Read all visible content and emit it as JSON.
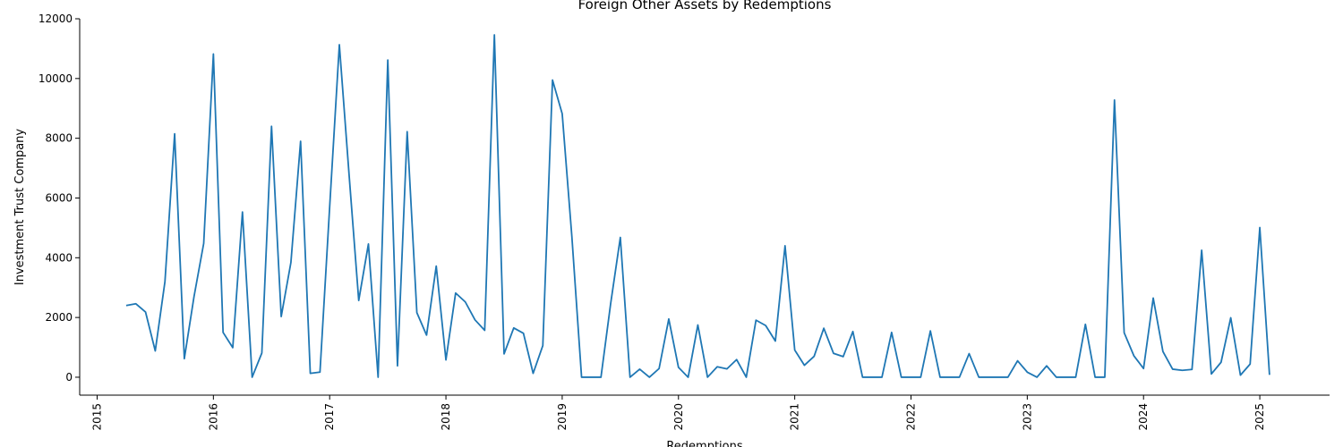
{
  "chart_data": {
    "type": "line",
    "title": "Foreign Other Assets by Redemptions",
    "xlabel": "Redemptions",
    "ylabel": "Investment Trust Company",
    "xlim": [
      2014.85,
      2025.6
    ],
    "ylim": [
      -600,
      12000
    ],
    "x_ticks": [
      2015,
      2016,
      2017,
      2018,
      2019,
      2020,
      2021,
      2022,
      2023,
      2024,
      2025
    ],
    "x_tick_labels": [
      "2015",
      "2016",
      "2017",
      "2018",
      "2019",
      "2020",
      "2021",
      "2022",
      "2023",
      "2024",
      "2025"
    ],
    "y_ticks": [
      0,
      2000,
      4000,
      6000,
      8000,
      10000,
      12000
    ],
    "y_tick_labels": [
      "0",
      "2000",
      "4000",
      "6000",
      "8000",
      "10000",
      "12000"
    ],
    "grid": false,
    "series": [
      {
        "color": "#1f77b4",
        "points": [
          [
            "2015-04",
            2400
          ],
          [
            "2015-05",
            2460
          ],
          [
            "2015-06",
            2180
          ],
          [
            "2015-07",
            880
          ],
          [
            "2015-08",
            3200
          ],
          [
            "2015-09",
            8150
          ],
          [
            "2015-10",
            620
          ],
          [
            "2015-11",
            2700
          ],
          [
            "2015-12",
            4480
          ],
          [
            "2016-01",
            10820
          ],
          [
            "2016-02",
            1500
          ],
          [
            "2016-03",
            990
          ],
          [
            "2016-04",
            5530
          ],
          [
            "2016-05",
            0
          ],
          [
            "2016-06",
            810
          ],
          [
            "2016-07",
            8400
          ],
          [
            "2016-08",
            2030
          ],
          [
            "2016-09",
            3840
          ],
          [
            "2016-10",
            7900
          ],
          [
            "2016-11",
            130
          ],
          [
            "2016-12",
            170
          ],
          [
            "2017-01",
            5700
          ],
          [
            "2017-02",
            11130
          ],
          [
            "2017-03",
            6800
          ],
          [
            "2017-04",
            2570
          ],
          [
            "2017-05",
            4460
          ],
          [
            "2017-06",
            0
          ],
          [
            "2017-07",
            10620
          ],
          [
            "2017-08",
            380
          ],
          [
            "2017-09",
            8220
          ],
          [
            "2017-10",
            2160
          ],
          [
            "2017-11",
            1410
          ],
          [
            "2017-12",
            3720
          ],
          [
            "2018-01",
            580
          ],
          [
            "2018-02",
            2820
          ],
          [
            "2018-03",
            2520
          ],
          [
            "2018-04",
            1920
          ],
          [
            "2018-05",
            1570
          ],
          [
            "2018-06",
            11460
          ],
          [
            "2018-07",
            780
          ],
          [
            "2018-08",
            1650
          ],
          [
            "2018-09",
            1470
          ],
          [
            "2018-10",
            130
          ],
          [
            "2018-11",
            1060
          ],
          [
            "2018-12",
            9950
          ],
          [
            "2019-01",
            8820
          ],
          [
            "2019-02",
            4700
          ],
          [
            "2019-03",
            0
          ],
          [
            "2019-04",
            0
          ],
          [
            "2019-05",
            0
          ],
          [
            "2019-06",
            2460
          ],
          [
            "2019-07",
            4680
          ],
          [
            "2019-08",
            0
          ],
          [
            "2019-09",
            270
          ],
          [
            "2019-10",
            0
          ],
          [
            "2019-11",
            290
          ],
          [
            "2019-12",
            1950
          ],
          [
            "2020-01",
            330
          ],
          [
            "2020-02",
            0
          ],
          [
            "2020-03",
            1750
          ],
          [
            "2020-04",
            0
          ],
          [
            "2020-05",
            350
          ],
          [
            "2020-06",
            280
          ],
          [
            "2020-07",
            590
          ],
          [
            "2020-08",
            0
          ],
          [
            "2020-09",
            1910
          ],
          [
            "2020-10",
            1730
          ],
          [
            "2020-11",
            1210
          ],
          [
            "2020-12",
            4400
          ],
          [
            "2021-01",
            910
          ],
          [
            "2021-02",
            400
          ],
          [
            "2021-03",
            700
          ],
          [
            "2021-04",
            1640
          ],
          [
            "2021-05",
            800
          ],
          [
            "2021-06",
            690
          ],
          [
            "2021-07",
            1530
          ],
          [
            "2021-08",
            0
          ],
          [
            "2021-09",
            0
          ],
          [
            "2021-10",
            0
          ],
          [
            "2021-11",
            1500
          ],
          [
            "2021-12",
            0
          ],
          [
            "2022-01",
            0
          ],
          [
            "2022-02",
            0
          ],
          [
            "2022-03",
            1550
          ],
          [
            "2022-04",
            0
          ],
          [
            "2022-05",
            0
          ],
          [
            "2022-06",
            0
          ],
          [
            "2022-07",
            790
          ],
          [
            "2022-08",
            0
          ],
          [
            "2022-09",
            0
          ],
          [
            "2022-10",
            0
          ],
          [
            "2022-11",
            0
          ],
          [
            "2022-12",
            550
          ],
          [
            "2023-01",
            170
          ],
          [
            "2023-02",
            0
          ],
          [
            "2023-03",
            380
          ],
          [
            "2023-04",
            0
          ],
          [
            "2023-05",
            0
          ],
          [
            "2023-06",
            0
          ],
          [
            "2023-07",
            1770
          ],
          [
            "2023-08",
            0
          ],
          [
            "2023-09",
            0
          ],
          [
            "2023-10",
            9280
          ],
          [
            "2023-11",
            1490
          ],
          [
            "2023-12",
            720
          ],
          [
            "2024-01",
            290
          ],
          [
            "2024-02",
            2650
          ],
          [
            "2024-03",
            860
          ],
          [
            "2024-04",
            270
          ],
          [
            "2024-05",
            230
          ],
          [
            "2024-06",
            260
          ],
          [
            "2024-07",
            4250
          ],
          [
            "2024-08",
            110
          ],
          [
            "2024-09",
            500
          ],
          [
            "2024-10",
            1990
          ],
          [
            "2024-11",
            70
          ],
          [
            "2024-12",
            440
          ],
          [
            "2025-01",
            5010
          ],
          [
            "2025-02",
            80
          ]
        ]
      }
    ]
  }
}
